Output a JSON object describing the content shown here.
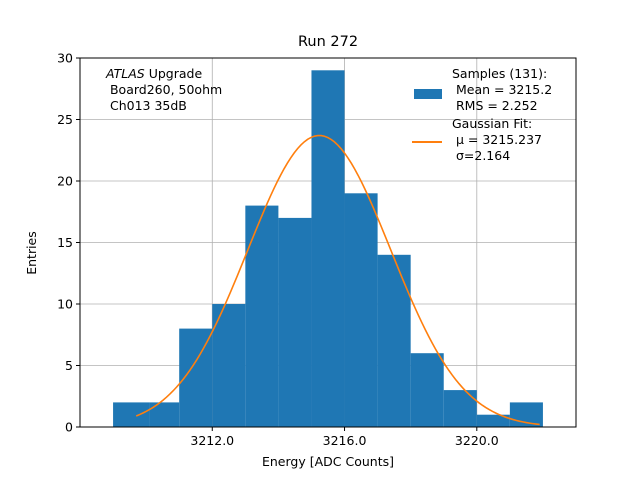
{
  "chart_data": {
    "type": "bar",
    "title": "Run 272",
    "xlabel": "Energy [ADC Counts]",
    "ylabel": "Entries",
    "xlim": [
      3208.0,
      3223.0
    ],
    "ylim": [
      0,
      30
    ],
    "grid": true,
    "x_ticks": [
      3212.0,
      3216.0,
      3220.0
    ],
    "x_tick_labels": [
      "3212.0",
      "3216.0",
      "3220.0"
    ],
    "y_ticks": [
      0,
      5,
      10,
      15,
      20,
      25,
      30
    ],
    "y_tick_labels": [
      "0",
      "5",
      "10",
      "15",
      "20",
      "25",
      "30"
    ],
    "bin_edges": [
      3209.0,
      3210.1,
      3211.0,
      3212.0,
      3213.0,
      3214.0,
      3215.0,
      3216.0,
      3217.0,
      3218.0,
      3219.0,
      3220.0,
      3221.0,
      3222.0
    ],
    "values": [
      2,
      2,
      8,
      10,
      18,
      17,
      29,
      19,
      14,
      6,
      3,
      1,
      2
    ],
    "bar_color": "#1f77b4",
    "fit": {
      "name": "Gaussian Fit",
      "mu": 3215.237,
      "sigma": 2.164,
      "amplitude": 23.7,
      "x_range": [
        3209.7,
        3221.9
      ],
      "color": "#ff7f0e"
    },
    "annotation": {
      "experiment": "ATLAS",
      "experiment_suffix": " Upgrade",
      "line2": " Board260, 50ohm",
      "line3": " Ch013 35dB"
    },
    "legend": {
      "position": "top-right",
      "samples_title": "Samples (131):",
      "samples_mean": " Mean = 3215.2",
      "samples_rms": " RMS = 2.252",
      "fit_title": "Gaussian Fit:",
      "fit_mu": " μ = 3215.237",
      "fit_sigma": " σ=2.164"
    }
  }
}
